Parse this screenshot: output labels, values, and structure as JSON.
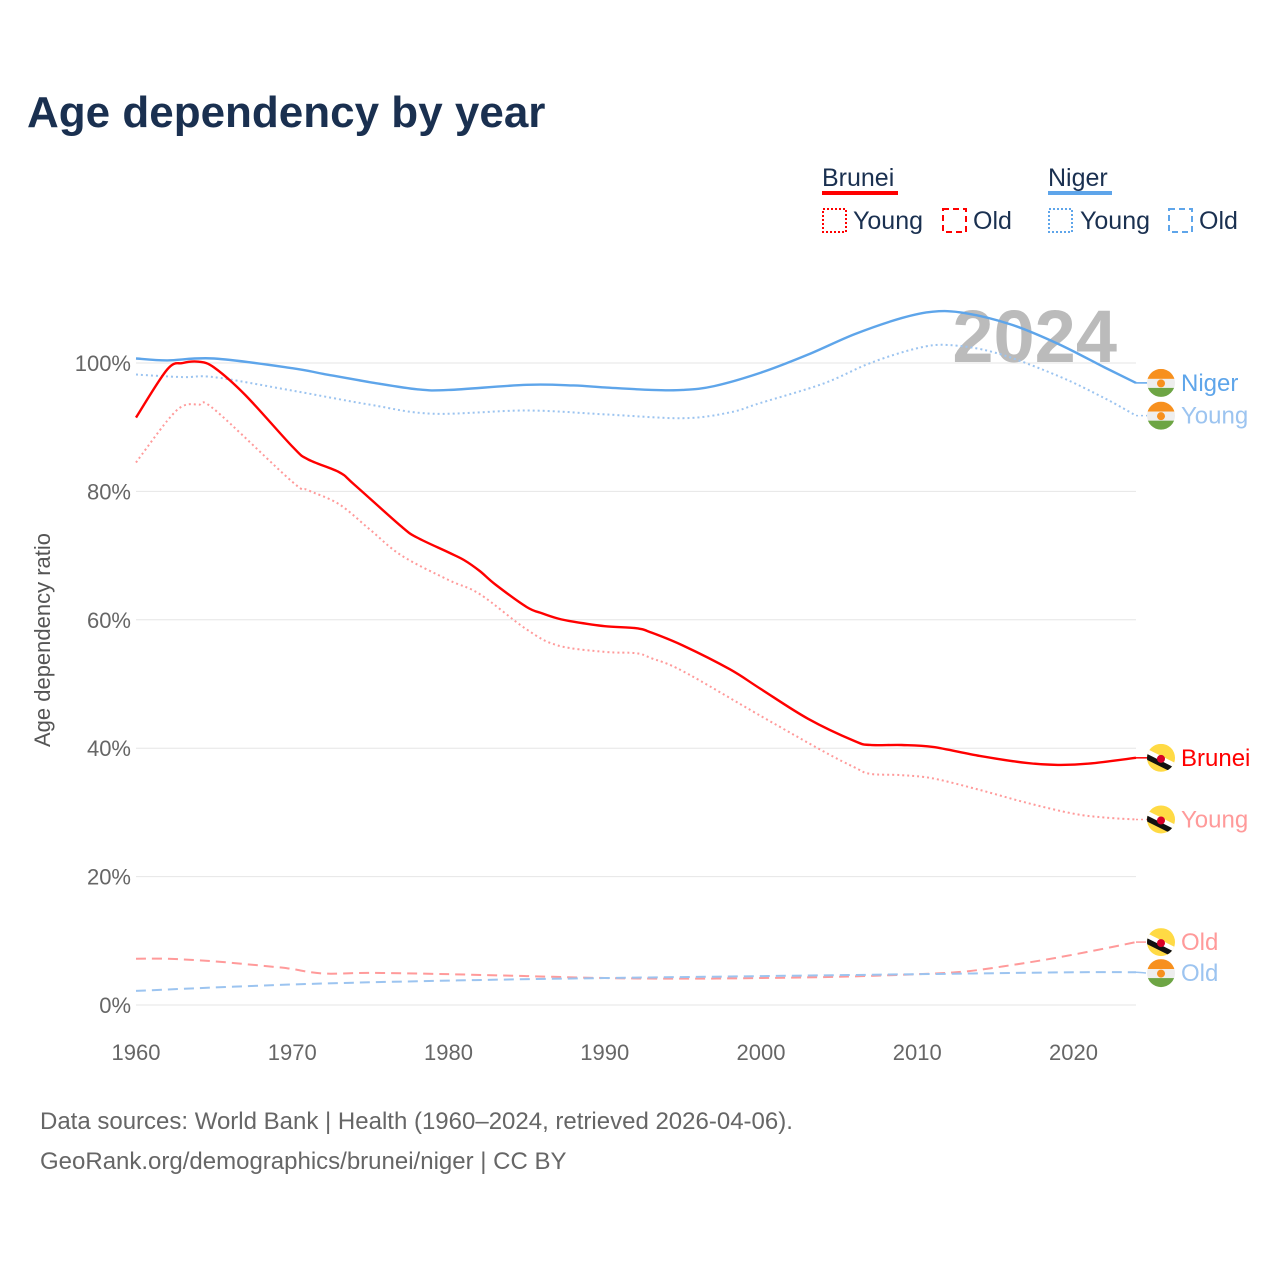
{
  "title": "Age dependency by year",
  "legend": {
    "groups": [
      {
        "name": "Brunei",
        "color": "#ff0000",
        "items": [
          "Young",
          "Old"
        ]
      },
      {
        "name": "Niger",
        "color": "#5ea5ea",
        "items": [
          "Young",
          "Old"
        ]
      }
    ]
  },
  "year_overlay": "2024",
  "footer": {
    "line1": "Data sources: World Bank | Health (1960–2024, retrieved 2026-04-06).",
    "line2": "GeoRank.org/demographics/brunei/niger | CC BY"
  },
  "chart_data": {
    "type": "line",
    "title": "Age dependency by year",
    "xlabel": "",
    "ylabel": "Age dependency ratio",
    "xlim": [
      1960,
      2024
    ],
    "ylim": [
      0,
      110
    ],
    "xticks": [
      "1960",
      "1970",
      "1980",
      "1990",
      "2000",
      "2010",
      "2020"
    ],
    "yticks": [
      "0%",
      "20%",
      "40%",
      "60%",
      "80%",
      "100%"
    ],
    "grid": true,
    "legend_position": "top-right",
    "series": [
      {
        "name": "Niger",
        "label": "Niger",
        "country": "niger",
        "style": "solid",
        "color": "#5ea5ea",
        "x": [
          1960,
          1962,
          1965,
          1970,
          1972,
          1975,
          1978,
          1980,
          1985,
          1988,
          1990,
          1993,
          1995,
          1997,
          2000,
          2003,
          2006,
          2009,
          2011,
          2013,
          2016,
          2019,
          2022,
          2024
        ],
        "y": [
          100.7,
          100.4,
          100.7,
          99.2,
          98.3,
          97,
          95.9,
          95.8,
          96.6,
          96.5,
          96.2,
          95.8,
          95.8,
          96.4,
          98.5,
          101.3,
          104.5,
          107,
          108,
          107.8,
          106,
          103,
          99.3,
          96.9
        ]
      },
      {
        "name": "Niger Young",
        "label": "Young",
        "country": "niger",
        "style": "dotted",
        "color": "#9cc4f0",
        "x": [
          1960,
          1963,
          1965,
          1970,
          1975,
          1979,
          1985,
          1990,
          1995,
          1998,
          2000,
          2004,
          2007,
          2010,
          2012,
          2015,
          2019,
          2022,
          2024
        ],
        "y": [
          98.2,
          97.8,
          97.8,
          95.7,
          93.5,
          92.1,
          92.6,
          92,
          91.4,
          92.3,
          93.8,
          96.8,
          100,
          102.3,
          102.8,
          101.6,
          98,
          94.5,
          91.8
        ]
      },
      {
        "name": "Brunei",
        "label": "Brunei",
        "country": "brunei",
        "style": "solid",
        "color": "#ff0000",
        "x": [
          1960,
          1962,
          1963,
          1964,
          1965,
          1967,
          1970,
          1971,
          1973,
          1974,
          1977,
          1978,
          1980,
          1981,
          1982,
          1983,
          1985,
          1986,
          1987,
          1988,
          1990,
          1992,
          1993,
          1995,
          1998,
          2000,
          2003,
          2006,
          2007,
          2009,
          2011,
          2014,
          2017,
          2019,
          2021,
          2024
        ],
        "y": [
          91.5,
          99,
          100,
          100.2,
          99.3,
          95,
          87,
          85,
          83,
          81,
          74.5,
          72.8,
          70.5,
          69.3,
          67.6,
          65.5,
          62,
          61,
          60.2,
          59.7,
          59,
          58.7,
          58,
          56,
          52.3,
          49.2,
          44.6,
          41.1,
          40.5,
          40.5,
          40.2,
          38.8,
          37.7,
          37.4,
          37.6,
          38.5
        ]
      },
      {
        "name": "Brunei Young",
        "label": "Young",
        "country": "brunei",
        "style": "dotted",
        "color": "#ff9a9a",
        "x": [
          1960,
          1962,
          1963,
          1964,
          1965,
          1970,
          1971,
          1973,
          1975,
          1977,
          1980,
          1982,
          1985,
          1987,
          1990,
          1992,
          1993,
          1995,
          2000,
          2004,
          2006,
          2007,
          2009,
          2011,
          2014,
          2017,
          2020,
          2022,
          2024
        ],
        "y": [
          84.5,
          91,
          93.3,
          93.5,
          92.8,
          81.5,
          80.2,
          78,
          74,
          70,
          66.2,
          64,
          58.5,
          56,
          55,
          54.8,
          54,
          52,
          45,
          39.5,
          37,
          36,
          35.8,
          35.3,
          33.5,
          31.5,
          29.8,
          29.2,
          28.9
        ]
      },
      {
        "name": "Brunei Old",
        "label": "Old",
        "country": "brunei",
        "style": "dashed",
        "color": "#ff9a9a",
        "x": [
          1960,
          1962,
          1965,
          1969,
          1970,
          1972,
          1975,
          1980,
          1985,
          1990,
          1995,
          2000,
          2005,
          2010,
          2013,
          2016,
          2019,
          2022,
          2024
        ],
        "y": [
          7.2,
          7.2,
          6.8,
          5.9,
          5.6,
          4.9,
          5,
          4.8,
          4.5,
          4.2,
          4.1,
          4.2,
          4.4,
          4.8,
          5.2,
          6.2,
          7.4,
          8.8,
          9.8
        ]
      },
      {
        "name": "Niger Old",
        "label": "Old",
        "country": "niger",
        "style": "dashed",
        "color": "#9cc4f0",
        "x": [
          1960,
          1970,
          1980,
          1990,
          2000,
          2010,
          2020,
          2024
        ],
        "y": [
          2.2,
          3.2,
          3.8,
          4.2,
          4.5,
          4.8,
          5.1,
          5.1
        ]
      }
    ]
  }
}
